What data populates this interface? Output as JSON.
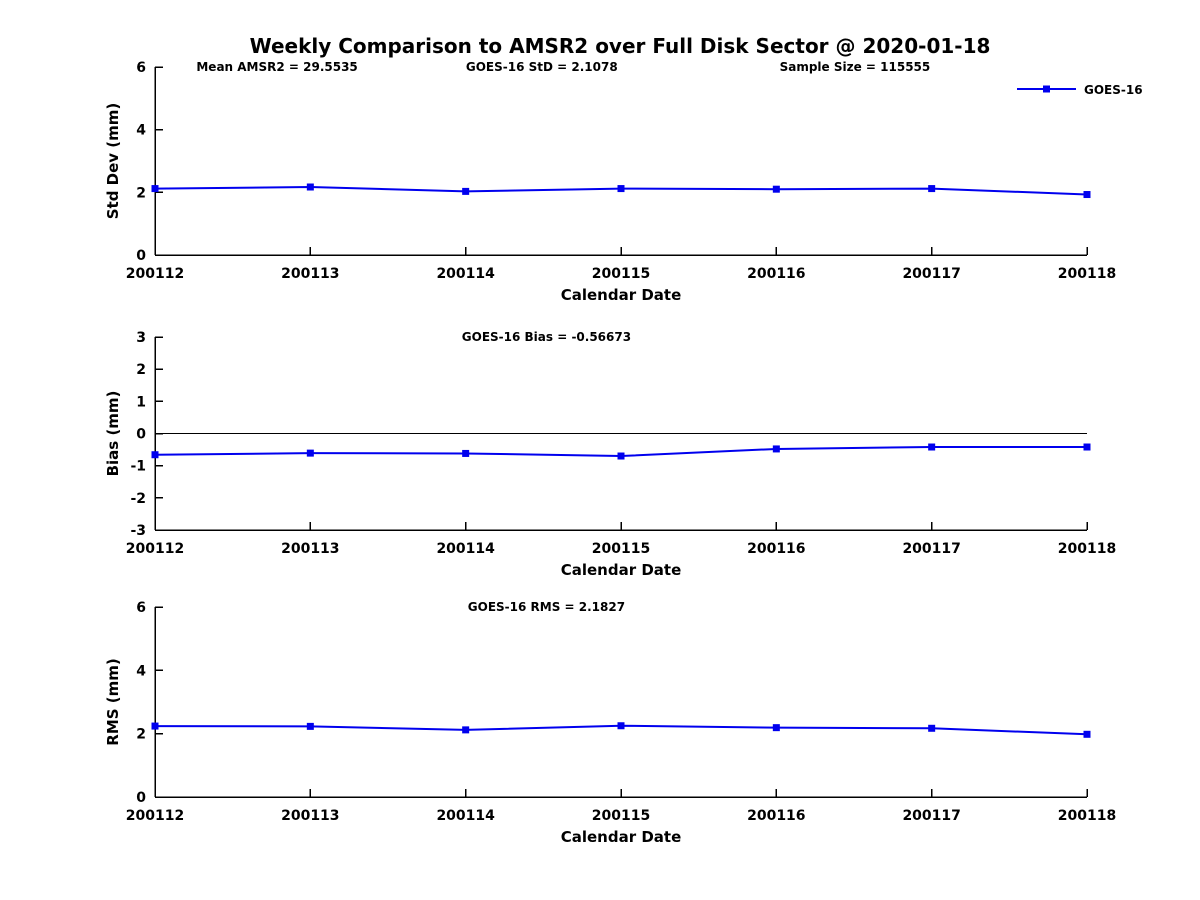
{
  "figure": {
    "title": "Weekly Comparison to AMSR2 over Full Disk Sector @ 2020-01-18",
    "background": "#ffffff",
    "line_color": "#0000ee",
    "axis_color": "#000000"
  },
  "chart_data": [
    {
      "type": "line",
      "ylabel": "Std Dev (mm)",
      "xlabel": "Calendar Date",
      "categories": [
        "200112",
        "200113",
        "200114",
        "200115",
        "200116",
        "200117",
        "200118"
      ],
      "series": [
        {
          "name": "GOES-16",
          "values": [
            2.12,
            2.17,
            2.03,
            2.12,
            2.1,
            2.12,
            1.93
          ]
        }
      ],
      "ylim": [
        0,
        6
      ],
      "yticks": [
        0,
        2,
        4,
        6
      ],
      "annotations": [
        "Mean AMSR2 = 29.5535",
        "GOES-16 StD = 2.1078",
        "Sample Size = 115555"
      ],
      "annotation_x": [
        0.131,
        0.415,
        0.751
      ],
      "legend": {
        "label": "GOES-16",
        "position": "top-right"
      },
      "grid": false,
      "zero_line": false
    },
    {
      "type": "line",
      "ylabel": "Bias (mm)",
      "xlabel": "Calendar Date",
      "categories": [
        "200112",
        "200113",
        "200114",
        "200115",
        "200116",
        "200117",
        "200118"
      ],
      "series": [
        {
          "name": "GOES-16",
          "values": [
            -0.66,
            -0.61,
            -0.62,
            -0.7,
            -0.48,
            -0.42,
            -0.42
          ]
        }
      ],
      "ylim": [
        -3,
        3
      ],
      "yticks": [
        -3,
        -2,
        -1,
        0,
        1,
        2,
        3
      ],
      "annotations": [
        "GOES-16 Bias  = -0.56673"
      ],
      "annotation_x": [
        0.42
      ],
      "grid": false,
      "zero_line": true
    },
    {
      "type": "line",
      "ylabel": "RMS (mm)",
      "xlabel": "Calendar Date",
      "categories": [
        "200112",
        "200113",
        "200114",
        "200115",
        "200116",
        "200117",
        "200118"
      ],
      "series": [
        {
          "name": "GOES-16",
          "values": [
            2.24,
            2.23,
            2.12,
            2.25,
            2.19,
            2.17,
            1.98
          ]
        }
      ],
      "ylim": [
        0,
        6
      ],
      "yticks": [
        0,
        2,
        4,
        6
      ],
      "annotations": [
        "GOES-16 RMS = 2.1827"
      ],
      "annotation_x": [
        0.42
      ],
      "grid": false,
      "zero_line": false
    }
  ]
}
